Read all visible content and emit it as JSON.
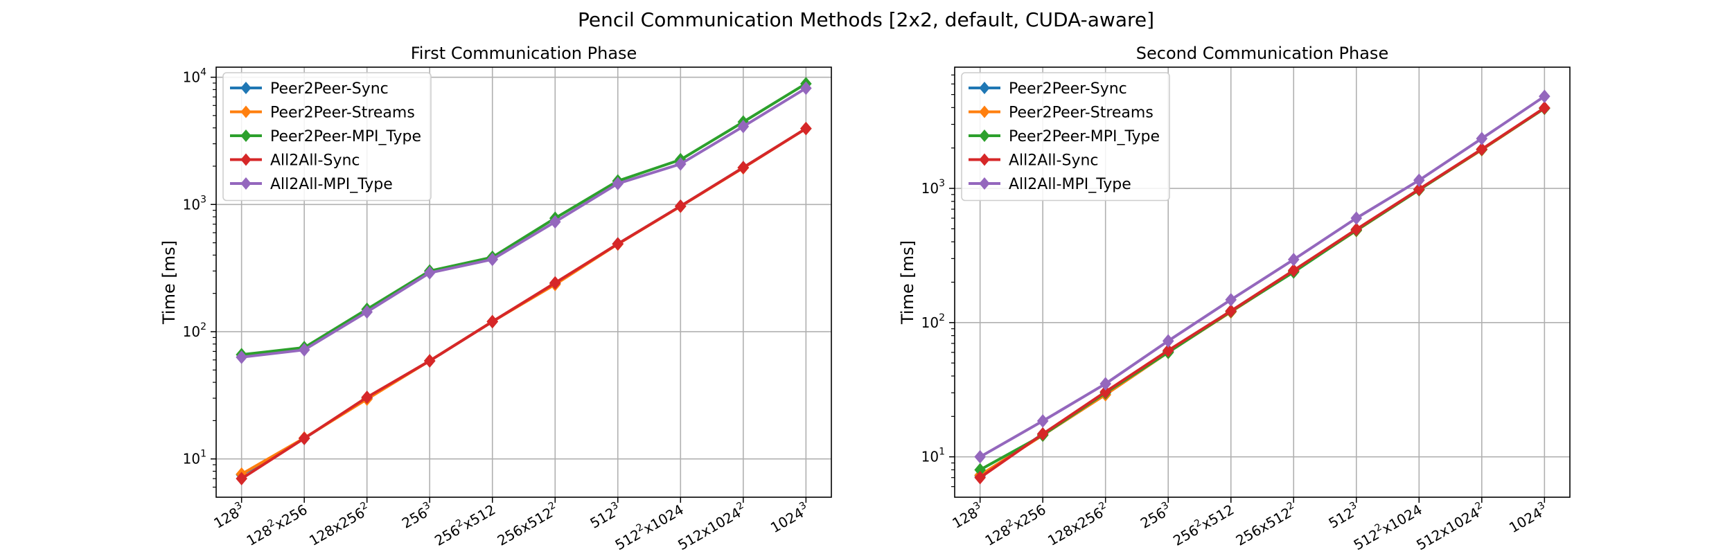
{
  "figure": {
    "title": "Pencil Communication Methods [2x2, default, CUDA-aware]"
  },
  "chart_data": [
    {
      "type": "line",
      "title": "First Communication Phase",
      "xlabel": "",
      "ylabel": "Time [ms]",
      "yscale": "log",
      "ylim": [
        5,
        12000
      ],
      "grid": true,
      "legend_position": "top-left",
      "categories": [
        {
          "base": "128",
          "exp": "3",
          "rest": "",
          "rest_exp": ""
        },
        {
          "base": "128",
          "exp": "2",
          "rest": "x256",
          "rest_exp": ""
        },
        {
          "base": "128x256",
          "exp": "2",
          "rest": "",
          "rest_exp": ""
        },
        {
          "base": "256",
          "exp": "3",
          "rest": "",
          "rest_exp": ""
        },
        {
          "base": "256",
          "exp": "2",
          "rest": "x512",
          "rest_exp": ""
        },
        {
          "base": "256x512",
          "exp": "2",
          "rest": "",
          "rest_exp": ""
        },
        {
          "base": "512",
          "exp": "3",
          "rest": "",
          "rest_exp": ""
        },
        {
          "base": "512",
          "exp": "2",
          "rest": "x1024",
          "rest_exp": ""
        },
        {
          "base": "512x1024",
          "exp": "2",
          "rest": "",
          "rest_exp": ""
        },
        {
          "base": "1024",
          "exp": "3",
          "rest": "",
          "rest_exp": ""
        }
      ],
      "yticks": [
        {
          "base": "10",
          "exp": "1",
          "value": 10
        },
        {
          "base": "10",
          "exp": "2",
          "value": 100
        },
        {
          "base": "10",
          "exp": "3",
          "value": 1000
        },
        {
          "base": "10",
          "exp": "4",
          "value": 10000
        }
      ],
      "series": [
        {
          "name": "Peer2Peer-Sync",
          "color": "#1f77b4",
          "values": [
            7.5,
            14.5,
            30,
            59,
            120,
            240,
            490,
            970,
            1950,
            3950
          ]
        },
        {
          "name": "Peer2Peer-Streams",
          "color": "#ff7f0e",
          "values": [
            7.6,
            14.6,
            29.5,
            59,
            120,
            235,
            488,
            968,
            1940,
            3950
          ]
        },
        {
          "name": "Peer2Peer-MPI_Type",
          "color": "#2ca02c",
          "values": [
            66,
            75,
            150,
            300,
            385,
            780,
            1530,
            2250,
            4450,
            8900
          ]
        },
        {
          "name": "All2All-Sync",
          "color": "#d62728",
          "values": [
            7,
            14.5,
            30.5,
            59,
            120,
            242,
            490,
            970,
            1950,
            3950
          ]
        },
        {
          "name": "All2All-MPI_Type",
          "color": "#9467bd",
          "values": [
            63,
            72,
            143,
            290,
            370,
            730,
            1460,
            2080,
            4100,
            8200
          ]
        }
      ]
    },
    {
      "type": "line",
      "title": "Second Communication Phase",
      "xlabel": "",
      "ylabel": "Time [ms]",
      "yscale": "log",
      "ylim": [
        5,
        8000
      ],
      "grid": true,
      "legend_position": "top-left",
      "categories": [
        {
          "base": "128",
          "exp": "3",
          "rest": "",
          "rest_exp": ""
        },
        {
          "base": "128",
          "exp": "2",
          "rest": "x256",
          "rest_exp": ""
        },
        {
          "base": "128x256",
          "exp": "2",
          "rest": "",
          "rest_exp": ""
        },
        {
          "base": "256",
          "exp": "3",
          "rest": "",
          "rest_exp": ""
        },
        {
          "base": "256",
          "exp": "2",
          "rest": "x512",
          "rest_exp": ""
        },
        {
          "base": "256x512",
          "exp": "2",
          "rest": "",
          "rest_exp": ""
        },
        {
          "base": "512",
          "exp": "3",
          "rest": "",
          "rest_exp": ""
        },
        {
          "base": "512",
          "exp": "2",
          "rest": "x1024",
          "rest_exp": ""
        },
        {
          "base": "512x1024",
          "exp": "2",
          "rest": "",
          "rest_exp": ""
        },
        {
          "base": "1024",
          "exp": "3",
          "rest": "",
          "rest_exp": ""
        }
      ],
      "yticks": [
        {
          "base": "10",
          "exp": "1",
          "value": 10
        },
        {
          "base": "10",
          "exp": "2",
          "value": 100
        },
        {
          "base": "10",
          "exp": "3",
          "value": 1000
        }
      ],
      "series": [
        {
          "name": "Peer2Peer-Sync",
          "color": "#1f77b4",
          "values": [
            7.2,
            14.8,
            30,
            61,
            122,
            242,
            490,
            980,
            1950,
            3950
          ]
        },
        {
          "name": "Peer2Peer-Streams",
          "color": "#ff7f0e",
          "values": [
            7.3,
            14.5,
            29,
            60,
            120,
            240,
            485,
            975,
            1940,
            3950
          ]
        },
        {
          "name": "Peer2Peer-MPI_Type",
          "color": "#2ca02c",
          "values": [
            8,
            14.5,
            30,
            60,
            121,
            238,
            487,
            975,
            1950,
            3950
          ]
        },
        {
          "name": "All2All-Sync",
          "color": "#d62728",
          "values": [
            7,
            14.8,
            30.5,
            62,
            122,
            245,
            495,
            985,
            1960,
            3980
          ]
        },
        {
          "name": "All2All-MPI_Type",
          "color": "#9467bd",
          "values": [
            10,
            18.5,
            35,
            73,
            148,
            295,
            600,
            1150,
            2350,
            4850
          ]
        }
      ]
    }
  ]
}
